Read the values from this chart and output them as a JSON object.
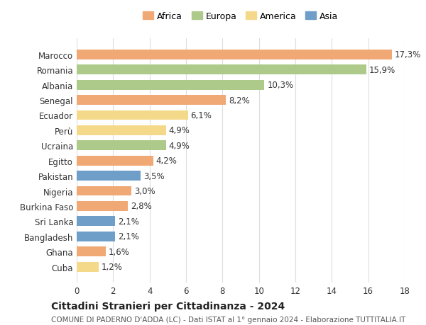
{
  "countries": [
    "Marocco",
    "Romania",
    "Albania",
    "Senegal",
    "Ecuador",
    "Perù",
    "Ucraina",
    "Egitto",
    "Pakistan",
    "Nigeria",
    "Burkina Faso",
    "Sri Lanka",
    "Bangladesh",
    "Ghana",
    "Cuba"
  ],
  "values": [
    17.3,
    15.9,
    10.3,
    8.2,
    6.1,
    4.9,
    4.9,
    4.2,
    3.5,
    3.0,
    2.8,
    2.1,
    2.1,
    1.6,
    1.2
  ],
  "labels": [
    "17,3%",
    "15,9%",
    "10,3%",
    "8,2%",
    "6,1%",
    "4,9%",
    "4,9%",
    "4,2%",
    "3,5%",
    "3,0%",
    "2,8%",
    "2,1%",
    "2,1%",
    "1,6%",
    "1,2%"
  ],
  "continents": [
    "Africa",
    "Europa",
    "Europa",
    "Africa",
    "America",
    "America",
    "Europa",
    "Africa",
    "Asia",
    "Africa",
    "Africa",
    "Asia",
    "Asia",
    "Africa",
    "America"
  ],
  "colors": {
    "Africa": "#F0A875",
    "Europa": "#AECA8A",
    "America": "#F5D98B",
    "Asia": "#6F9EC9"
  },
  "legend_order": [
    "Africa",
    "Europa",
    "America",
    "Asia"
  ],
  "title": "Cittadini Stranieri per Cittadinanza - 2024",
  "subtitle": "COMUNE DI PADERNO D'ADDA (LC) - Dati ISTAT al 1° gennaio 2024 - Elaborazione TUTTITALIA.IT",
  "xlim": [
    0,
    18
  ],
  "xticks": [
    0,
    2,
    4,
    6,
    8,
    10,
    12,
    14,
    16,
    18
  ],
  "background_color": "#ffffff",
  "grid_color": "#dddddd",
  "bar_height": 0.65,
  "label_fontsize": 8.5,
  "tick_fontsize": 8.5,
  "title_fontsize": 10,
  "subtitle_fontsize": 7.5,
  "legend_fontsize": 9
}
